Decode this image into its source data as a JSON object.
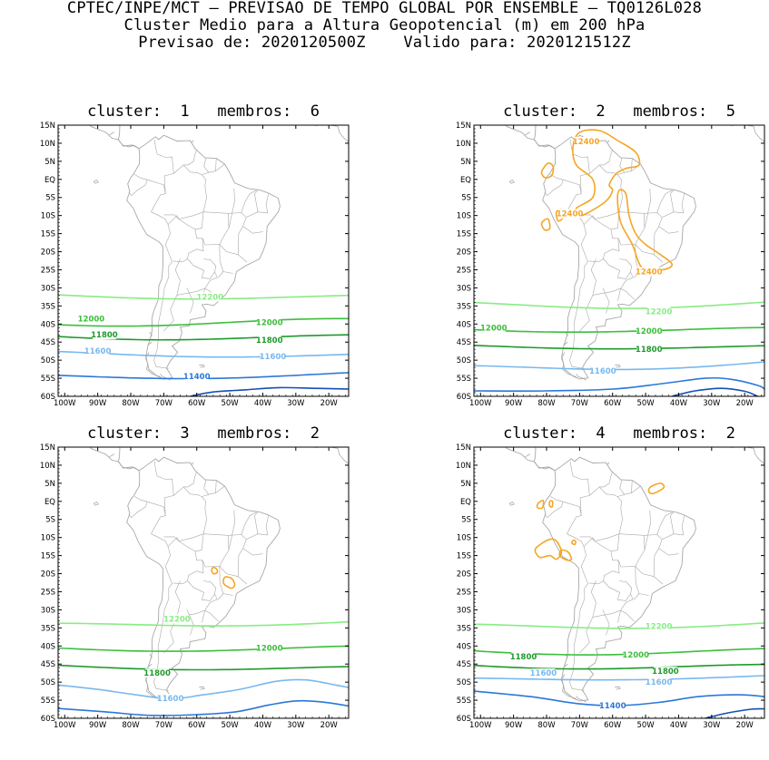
{
  "title": {
    "line1": "CPTEC/INPE/MCT – PREVISAO DE TEMPO GLOBAL POR ENSEMBLE – TQ0126L028",
    "line2": "Cluster Medio para a Altura Geopotencial (m) em 200 hPa",
    "line3": "Previsao de: 2020120500Z    Valido para: 2020121512Z"
  },
  "axes": {
    "lat_labels": [
      "15N",
      "10N",
      "5N",
      "EQ",
      "5S",
      "10S",
      "15S",
      "20S",
      "25S",
      "30S",
      "35S",
      "40S",
      "45S",
      "50S",
      "55S",
      "60S"
    ],
    "lon_labels": [
      "100W",
      "90W",
      "80W",
      "70W",
      "60W",
      "50W",
      "40W",
      "30W",
      "20W"
    ]
  },
  "colors": {
    "coast": "#a8a8a8",
    "c11400": "#2a78d8",
    "c11600": "#78b8ee",
    "c11800": "#1e9a2c",
    "c12000": "#3cbe3c",
    "c12200": "#88ec84",
    "c12400": "#f5a623",
    "c_low": "#1450b4"
  },
  "panels": [
    {
      "title": "cluster:  1   membros:  6",
      "labels": [
        {
          "text": "12200",
          "cls": "c12200",
          "lon": -56,
          "lat": -32.5
        },
        {
          "text": "12000",
          "cls": "c12000",
          "lon": -92,
          "lat": -38.5
        },
        {
          "text": "12000",
          "cls": "c12000",
          "lon": -38,
          "lat": -39.5
        },
        {
          "text": "11800",
          "cls": "c11800",
          "lon": -88,
          "lat": -43
        },
        {
          "text": "11800",
          "cls": "c11800",
          "lon": -38,
          "lat": -44.5
        },
        {
          "text": "11600",
          "cls": "c11600",
          "lon": -90,
          "lat": -47.5
        },
        {
          "text": "11600",
          "cls": "c11600",
          "lon": -37,
          "lat": -49
        },
        {
          "text": "11400",
          "cls": "c11400",
          "lon": -60,
          "lat": -54.5
        }
      ]
    },
    {
      "title": "cluster:  2   membros:  5",
      "labels": [
        {
          "text": "12400",
          "cls": "c12400",
          "lon": -68,
          "lat": 10.5
        },
        {
          "text": "12400",
          "cls": "c12400",
          "lon": -73,
          "lat": -9.5
        },
        {
          "text": "12400",
          "cls": "c12400",
          "lon": -49,
          "lat": -25.5
        },
        {
          "text": "12200",
          "cls": "c12200",
          "lon": -46,
          "lat": -36.5
        },
        {
          "text": "12000",
          "cls": "c12000",
          "lon": -96,
          "lat": -41
        },
        {
          "text": "12000",
          "cls": "c12000",
          "lon": -49,
          "lat": -42
        },
        {
          "text": "11800",
          "cls": "c11800",
          "lon": -49,
          "lat": -47
        },
        {
          "text": "11600",
          "cls": "c11600",
          "lon": -63,
          "lat": -53
        }
      ]
    },
    {
      "title": "cluster:  3   membros:  2",
      "labels": [
        {
          "text": "12200",
          "cls": "c12200",
          "lon": -66,
          "lat": -32.5
        },
        {
          "text": "12000",
          "cls": "c12000",
          "lon": -38,
          "lat": -40.5
        },
        {
          "text": "11800",
          "cls": "c11800",
          "lon": -72,
          "lat": -47.5
        },
        {
          "text": "11600",
          "cls": "c11600",
          "lon": -68,
          "lat": -54.5
        }
      ]
    },
    {
      "title": "cluster:  4   membros:  2",
      "labels": [
        {
          "text": "12200",
          "cls": "c12200",
          "lon": -46,
          "lat": -34.5
        },
        {
          "text": "12000",
          "cls": "c12000",
          "lon": -53,
          "lat": -42.5
        },
        {
          "text": "11800",
          "cls": "c11800",
          "lon": -87,
          "lat": -43
        },
        {
          "text": "11800",
          "cls": "c11800",
          "lon": -44,
          "lat": -47
        },
        {
          "text": "11600",
          "cls": "c11600",
          "lon": -81,
          "lat": -47.5
        },
        {
          "text": "11600",
          "cls": "c11600",
          "lon": -46,
          "lat": -50
        },
        {
          "text": "11400",
          "cls": "c11400",
          "lon": -60,
          "lat": -56.5
        }
      ]
    }
  ]
}
